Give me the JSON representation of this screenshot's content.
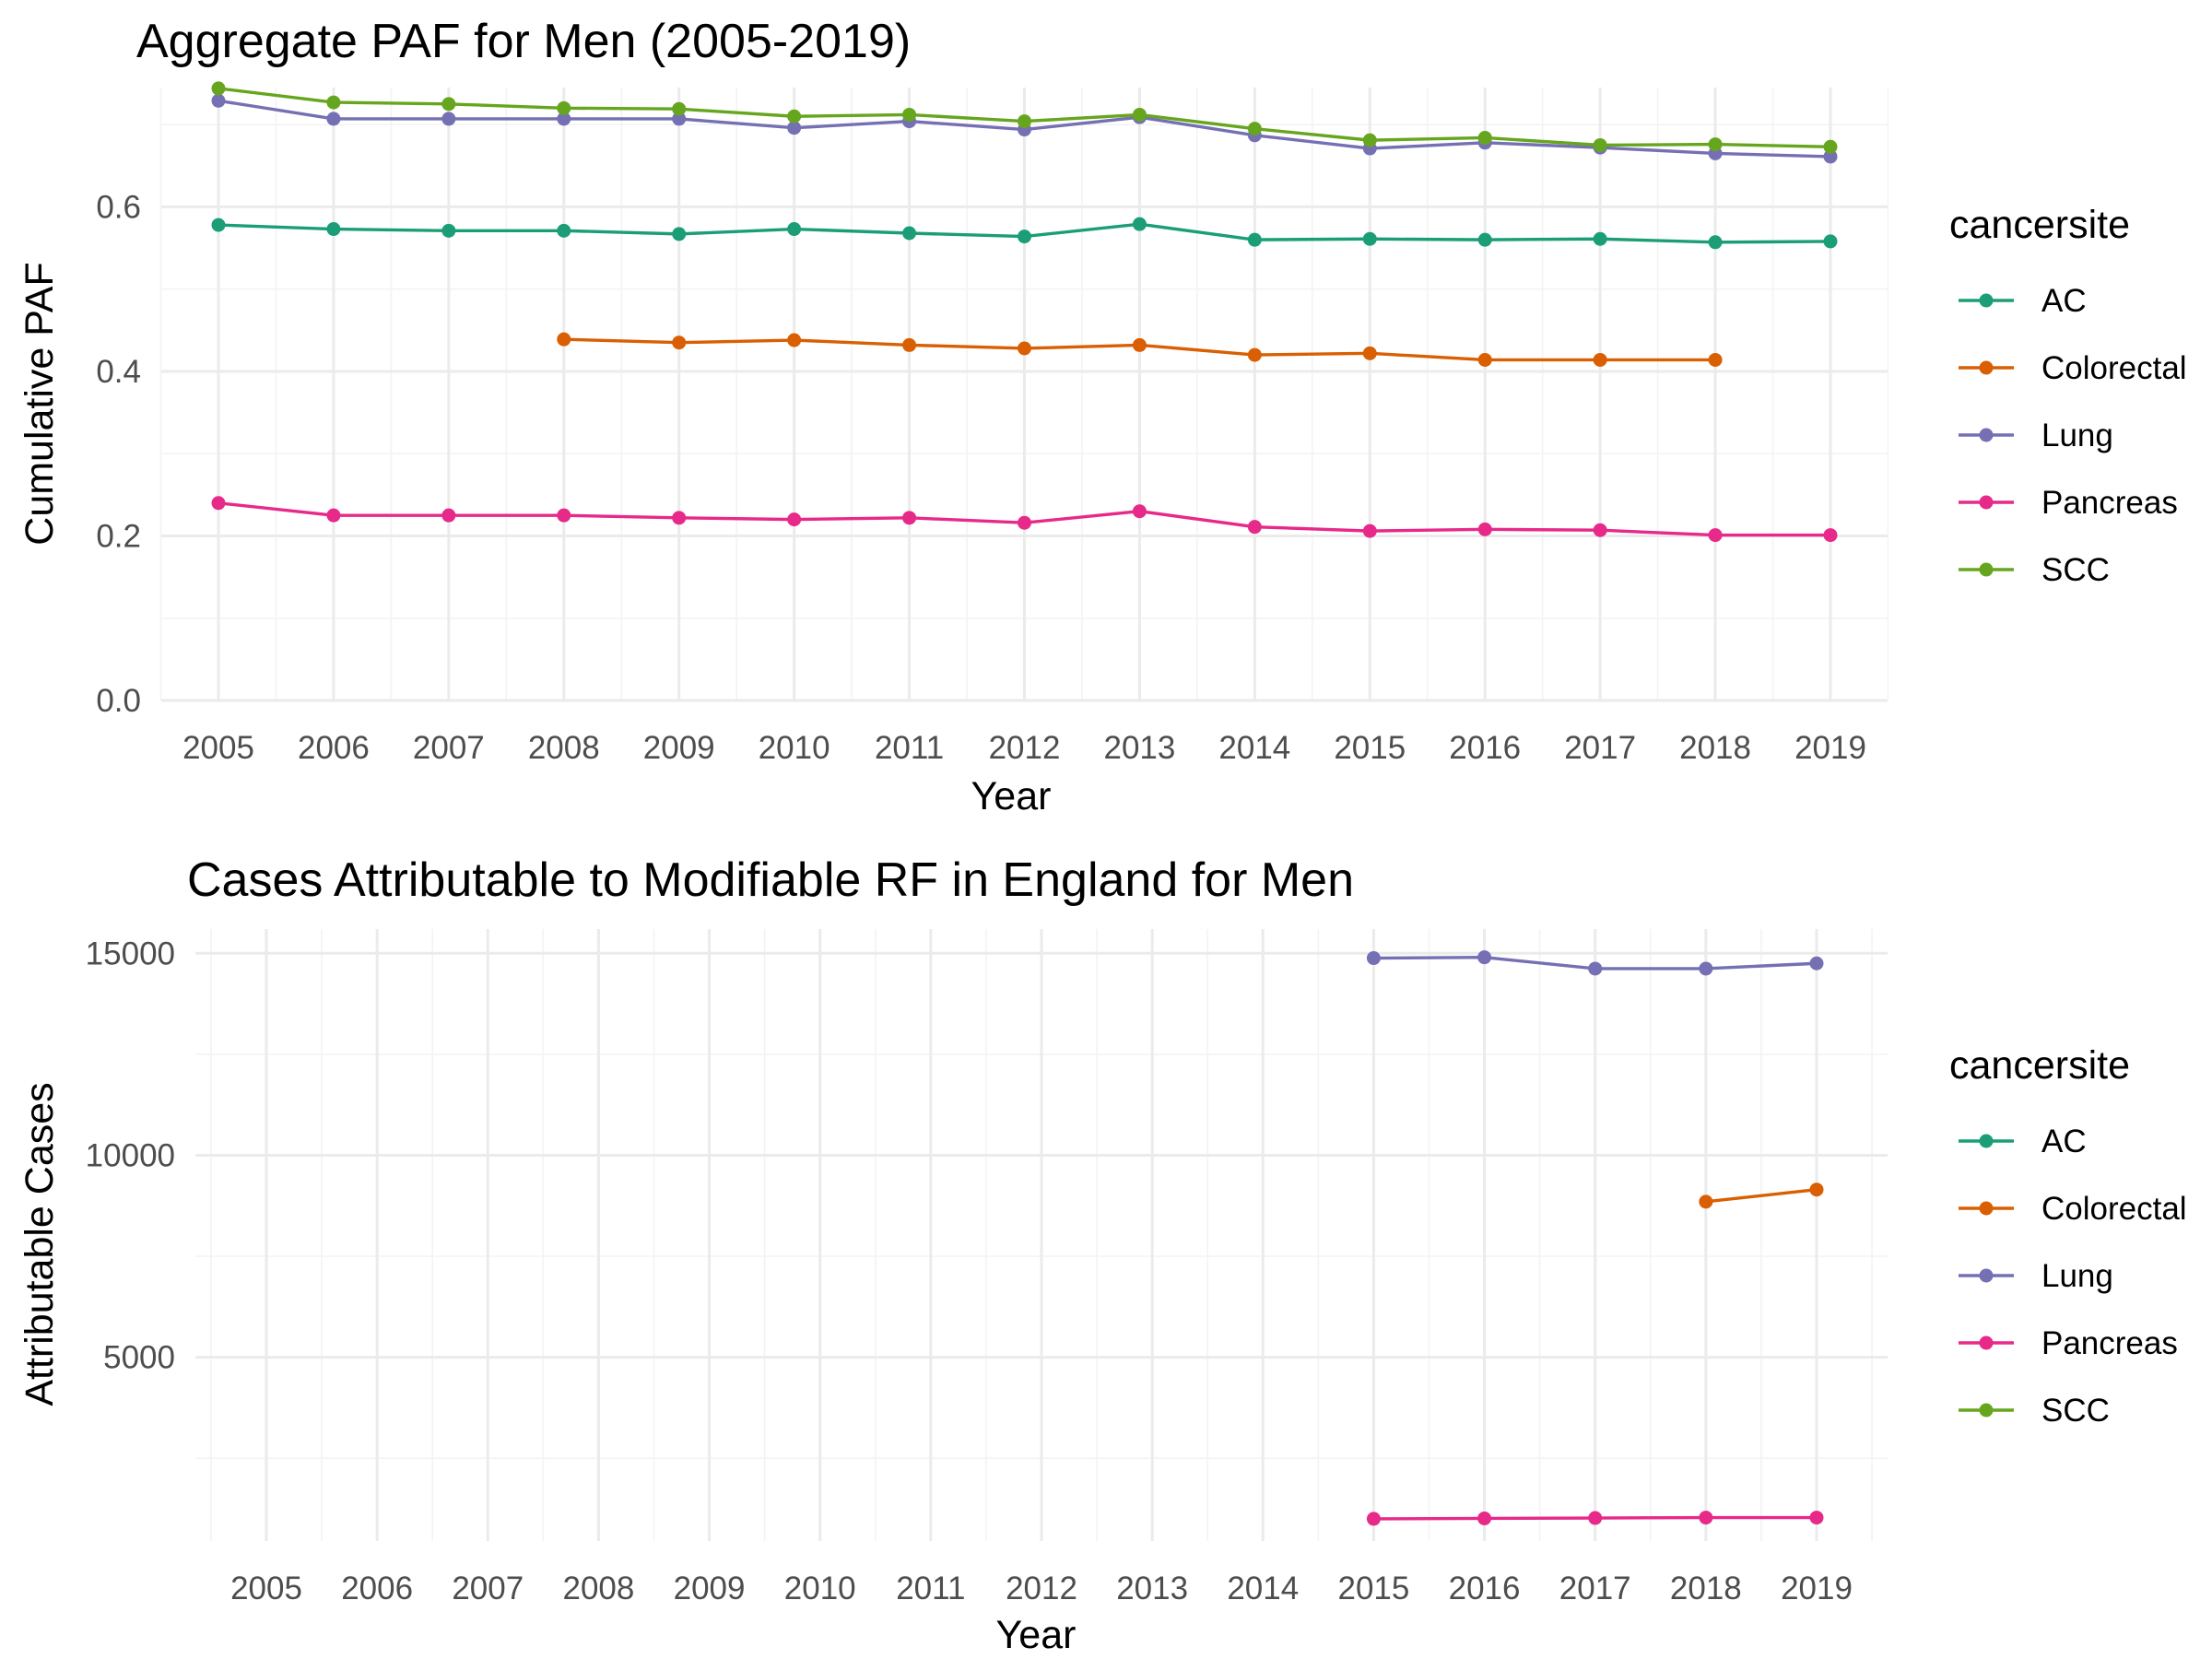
{
  "chart_data": [
    {
      "type": "line",
      "title": "Aggregate PAF for Men (2005-2019)",
      "xlabel": "Year",
      "ylabel": "Cumulative PAF",
      "x": [
        "2005",
        "2006",
        "2007",
        "2008",
        "2009",
        "2010",
        "2011",
        "2012",
        "2013",
        "2014",
        "2015",
        "2016",
        "2017",
        "2018",
        "2019"
      ],
      "yticks": [
        "0.0",
        "0.2",
        "0.4",
        "0.6"
      ],
      "ylim": [
        0,
        0.745
      ],
      "grid": true,
      "legend": {
        "title": "cancersite",
        "position": "right"
      },
      "series": [
        {
          "name": "AC",
          "color": "#1B9E77",
          "values": [
            0.578,
            0.573,
            0.571,
            0.571,
            0.567,
            0.573,
            0.568,
            0.564,
            0.579,
            0.56,
            0.561,
            0.56,
            0.561,
            0.557,
            0.558
          ]
        },
        {
          "name": "Colorectal",
          "color": "#D95F02",
          "values": [
            null,
            null,
            null,
            0.439,
            0.435,
            0.438,
            0.432,
            0.428,
            0.432,
            0.42,
            0.422,
            0.414,
            0.414,
            0.414,
            null
          ]
        },
        {
          "name": "Lung",
          "color": "#7570B3",
          "values": [
            0.729,
            0.707,
            0.707,
            0.707,
            0.707,
            0.696,
            0.704,
            0.694,
            0.709,
            0.687,
            0.671,
            0.678,
            0.672,
            0.665,
            0.661
          ]
        },
        {
          "name": "Pancreas",
          "color": "#E7298A",
          "values": [
            0.24,
            0.225,
            0.225,
            0.225,
            0.222,
            0.22,
            0.222,
            0.216,
            0.23,
            0.211,
            0.206,
            0.208,
            0.207,
            0.201,
            0.201
          ]
        },
        {
          "name": "SCC",
          "color": "#66A61E",
          "values": [
            0.744,
            0.727,
            0.725,
            0.72,
            0.719,
            0.71,
            0.712,
            0.704,
            0.712,
            0.695,
            0.681,
            0.684,
            0.675,
            0.676,
            0.673
          ]
        }
      ]
    },
    {
      "type": "line",
      "title": "Cases Attributable to Modifiable RF in England for Men",
      "xlabel": "Year",
      "ylabel": "Attributable Cases",
      "x": [
        "2005",
        "2006",
        "2007",
        "2008",
        "2009",
        "2010",
        "2011",
        "2012",
        "2013",
        "2014",
        "2015",
        "2016",
        "2017",
        "2018",
        "2019"
      ],
      "yticks": [
        "5000",
        "10000",
        "15000"
      ],
      "ylim": [
        450,
        15600
      ],
      "grid": true,
      "legend": {
        "title": "cancersite",
        "position": "right"
      },
      "series": [
        {
          "name": "AC",
          "color": "#1B9E77",
          "values": [
            null,
            null,
            null,
            null,
            null,
            null,
            null,
            null,
            null,
            null,
            null,
            null,
            null,
            null,
            null
          ]
        },
        {
          "name": "Colorectal",
          "color": "#D95F02",
          "values": [
            null,
            null,
            null,
            null,
            null,
            null,
            null,
            null,
            null,
            null,
            null,
            null,
            null,
            8850,
            9150
          ]
        },
        {
          "name": "Lung",
          "color": "#7570B3",
          "values": [
            null,
            null,
            null,
            null,
            null,
            null,
            null,
            null,
            null,
            null,
            14880,
            14900,
            14620,
            14620,
            14750
          ]
        },
        {
          "name": "Pancreas",
          "color": "#E7298A",
          "values": [
            null,
            null,
            null,
            null,
            null,
            null,
            null,
            null,
            null,
            null,
            1000,
            1010,
            1020,
            1030,
            1030
          ]
        },
        {
          "name": "SCC",
          "color": "#66A61E",
          "values": [
            null,
            null,
            null,
            null,
            null,
            null,
            null,
            null,
            null,
            null,
            null,
            null,
            null,
            null,
            null
          ]
        }
      ]
    }
  ]
}
